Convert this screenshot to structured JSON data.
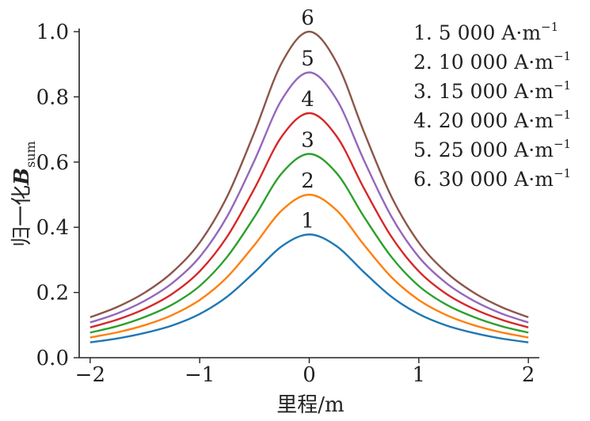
{
  "chart_data": {
    "type": "line",
    "xlabel": "里程/m",
    "ylabel": {
      "prefix": "归一化",
      "var": "B",
      "sub": "sum"
    },
    "xlim": [
      -2.1,
      2.1
    ],
    "ylim": [
      0,
      1.0
    ],
    "xticks": [
      -2,
      -1,
      0,
      1,
      2
    ],
    "xtick_labels": [
      "−2",
      "−1",
      "0",
      "1",
      "2"
    ],
    "yticks": [
      0.0,
      0.2,
      0.4,
      0.6,
      0.8,
      1.0
    ],
    "ytick_labels": [
      "0.0",
      "0.2",
      "0.4",
      "0.6",
      "0.8",
      "1.0"
    ],
    "grid": false,
    "legend_position": "top-right",
    "x": [
      -2.0,
      -1.75,
      -1.5,
      -1.25,
      -1.0,
      -0.75,
      -0.5,
      -0.25,
      0.0,
      0.25,
      0.5,
      0.75,
      1.0,
      1.25,
      1.5,
      1.75,
      2.0
    ],
    "series": [
      {
        "name": "1. 5 000 A·m⁻¹",
        "label": "1",
        "color": "#1f77b4",
        "values": [
          0.047,
          0.059,
          0.076,
          0.099,
          0.134,
          0.187,
          0.262,
          0.342,
          0.378,
          0.342,
          0.262,
          0.187,
          0.134,
          0.099,
          0.076,
          0.059,
          0.047
        ]
      },
      {
        "name": "2. 10 000 A·m⁻¹",
        "label": "2",
        "color": "#ff7f0e",
        "values": [
          0.062,
          0.078,
          0.1,
          0.131,
          0.177,
          0.247,
          0.346,
          0.452,
          0.5,
          0.452,
          0.346,
          0.247,
          0.177,
          0.131,
          0.1,
          0.078,
          0.062
        ]
      },
      {
        "name": "3. 15 000 A·m⁻¹",
        "label": "3",
        "color": "#2ca02c",
        "values": [
          0.077,
          0.097,
          0.125,
          0.163,
          0.22,
          0.309,
          0.432,
          0.566,
          0.625,
          0.566,
          0.432,
          0.309,
          0.22,
          0.163,
          0.125,
          0.097,
          0.077
        ]
      },
      {
        "name": "4. 20 000 A·m⁻¹",
        "label": "4",
        "color": "#d62728",
        "values": [
          0.093,
          0.117,
          0.15,
          0.196,
          0.265,
          0.371,
          0.519,
          0.679,
          0.75,
          0.679,
          0.519,
          0.371,
          0.265,
          0.196,
          0.15,
          0.117,
          0.093
        ]
      },
      {
        "name": "5. 25 000 A·m⁻¹",
        "label": "5",
        "color": "#9467bd",
        "values": [
          0.108,
          0.136,
          0.175,
          0.229,
          0.309,
          0.433,
          0.605,
          0.792,
          0.875,
          0.792,
          0.605,
          0.433,
          0.309,
          0.229,
          0.175,
          0.136,
          0.108
        ]
      },
      {
        "name": "6. 30 000 A·m⁻¹",
        "label": "6",
        "color": "#8c564b",
        "values": [
          0.124,
          0.156,
          0.2,
          0.262,
          0.353,
          0.494,
          0.692,
          0.905,
          1.0,
          0.905,
          0.692,
          0.494,
          0.353,
          0.262,
          0.2,
          0.156,
          0.124
        ]
      }
    ],
    "legend": [
      {
        "prefix": "1. 5 000 A·m",
        "sup": "−1"
      },
      {
        "prefix": "2. 10 000 A·m",
        "sup": "−1"
      },
      {
        "prefix": "3. 15 000 A·m",
        "sup": "−1"
      },
      {
        "prefix": "4. 20 000 A·m",
        "sup": "−1"
      },
      {
        "prefix": "5. 25 000 A·m",
        "sup": "−1"
      },
      {
        "prefix": "6. 30 000 A·m",
        "sup": "−1"
      }
    ]
  }
}
